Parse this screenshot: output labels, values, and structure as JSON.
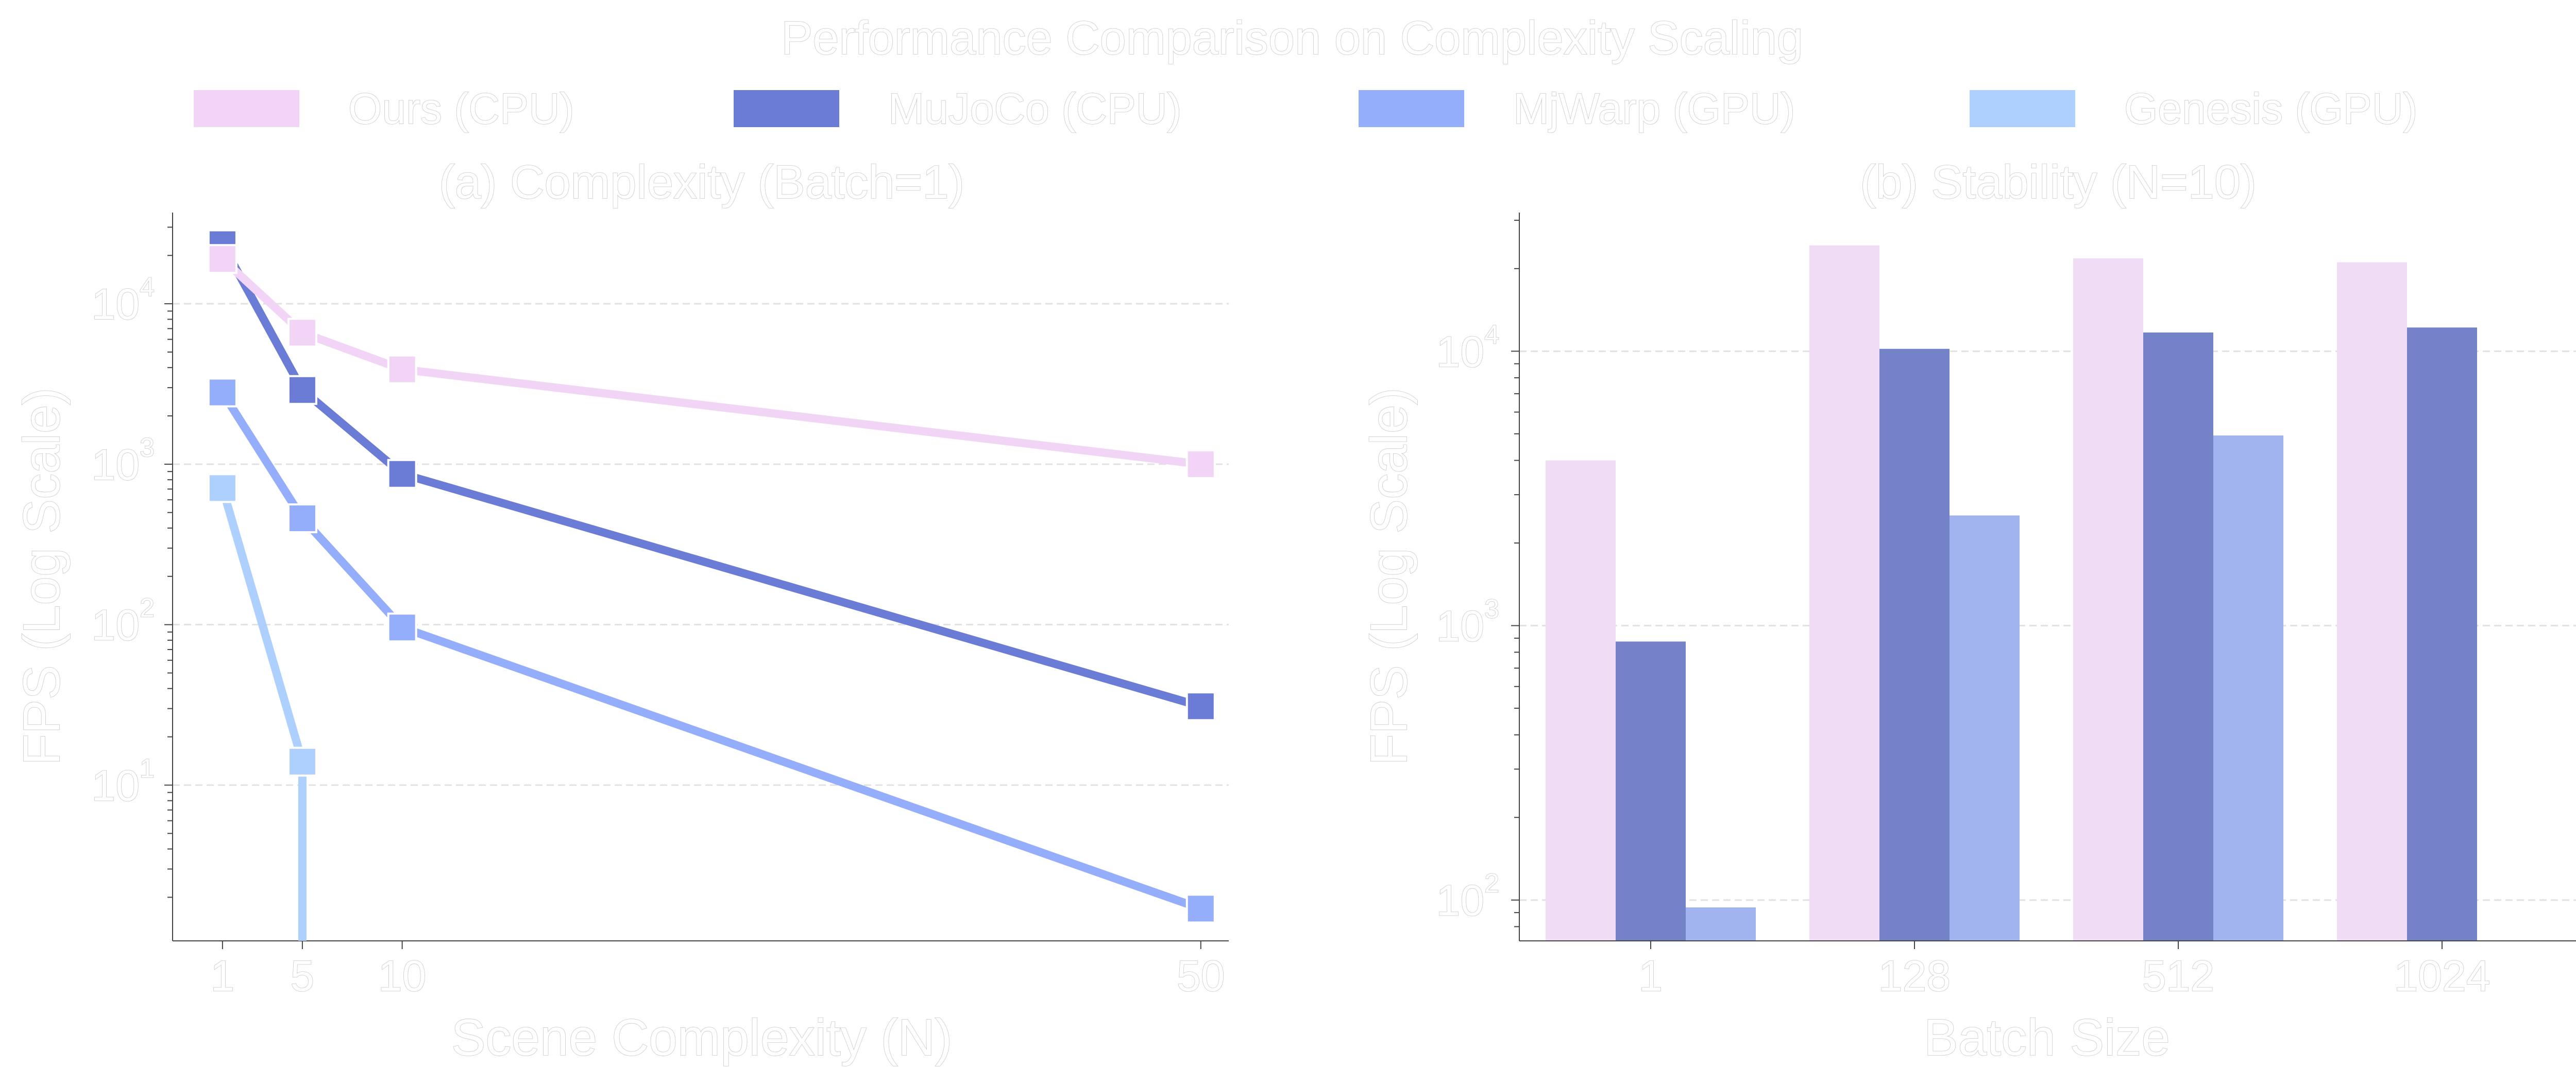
{
  "title": "Performance Comparison on Complexity Scaling",
  "legend": [
    {
      "label": "Ours (CPU)",
      "color": "#f2d4f7"
    },
    {
      "label": "MuJoCo (CPU)",
      "color": "#6a7cd6"
    },
    {
      "label": "MjWarp (GPU)",
      "color": "#94aefb"
    },
    {
      "label": "Genesis (GPU)",
      "color": "#aed0fe"
    }
  ],
  "chart_data": [
    {
      "type": "line",
      "title": "(a) Complexity (Batch=1)",
      "xlabel": "Scene Complexity (N)",
      "ylabel": "FPS (Log Scale)",
      "yscale": "log",
      "xlim": [
        -1.5,
        51.4
      ],
      "ylim": [
        1.07,
        37000
      ],
      "xticks": [
        "1",
        "5",
        "10",
        "50"
      ],
      "yticks": [
        10,
        100,
        1000,
        10000
      ],
      "grid": "y-dashed",
      "marker": "square",
      "series": [
        {
          "name": "Ours (CPU)",
          "color": "#f2d4f7",
          "x": [
            1,
            5,
            10,
            50
          ],
          "values": [
            19000,
            6600,
            3900,
            1000
          ]
        },
        {
          "name": "MuJoCo (CPU)",
          "color": "#6a7cd6",
          "x": [
            1,
            5,
            10,
            50
          ],
          "values": [
            23500,
            2900,
            870,
            31
          ]
        },
        {
          "name": "MjWarp (GPU)",
          "color": "#94aefb",
          "x": [
            1,
            5,
            10,
            50
          ],
          "values": [
            2800,
            460,
            96,
            1.7
          ]
        },
        {
          "name": "Genesis (GPU)",
          "color": "#aed0fe",
          "x": [
            1,
            5,
            5
          ],
          "values": [
            710,
            14,
            0
          ]
        }
      ]
    },
    {
      "type": "bar",
      "title": "(b) Stability (N=10)",
      "xlabel": "Batch Size",
      "ylabel": "FPS (Log Scale)",
      "yscale": "log",
      "ylim": [
        71,
        32000
      ],
      "categories": [
        "1",
        "128",
        "512",
        "1024"
      ],
      "yticks": [
        100,
        1000,
        10000
      ],
      "grid": "y-dashed",
      "series": [
        {
          "name": "Ours (CPU)",
          "color": "#f0dcf5",
          "values": [
            4000,
            24300,
            21800,
            21100
          ]
        },
        {
          "name": "MuJoCo (CPU)",
          "color": "#7482c8",
          "values": [
            875,
            10200,
            11700,
            12200
          ]
        },
        {
          "name": "MjWarp (GPU)",
          "color": "#a2b4f0",
          "values": [
            94,
            2520,
            4930,
            null
          ]
        }
      ]
    }
  ]
}
